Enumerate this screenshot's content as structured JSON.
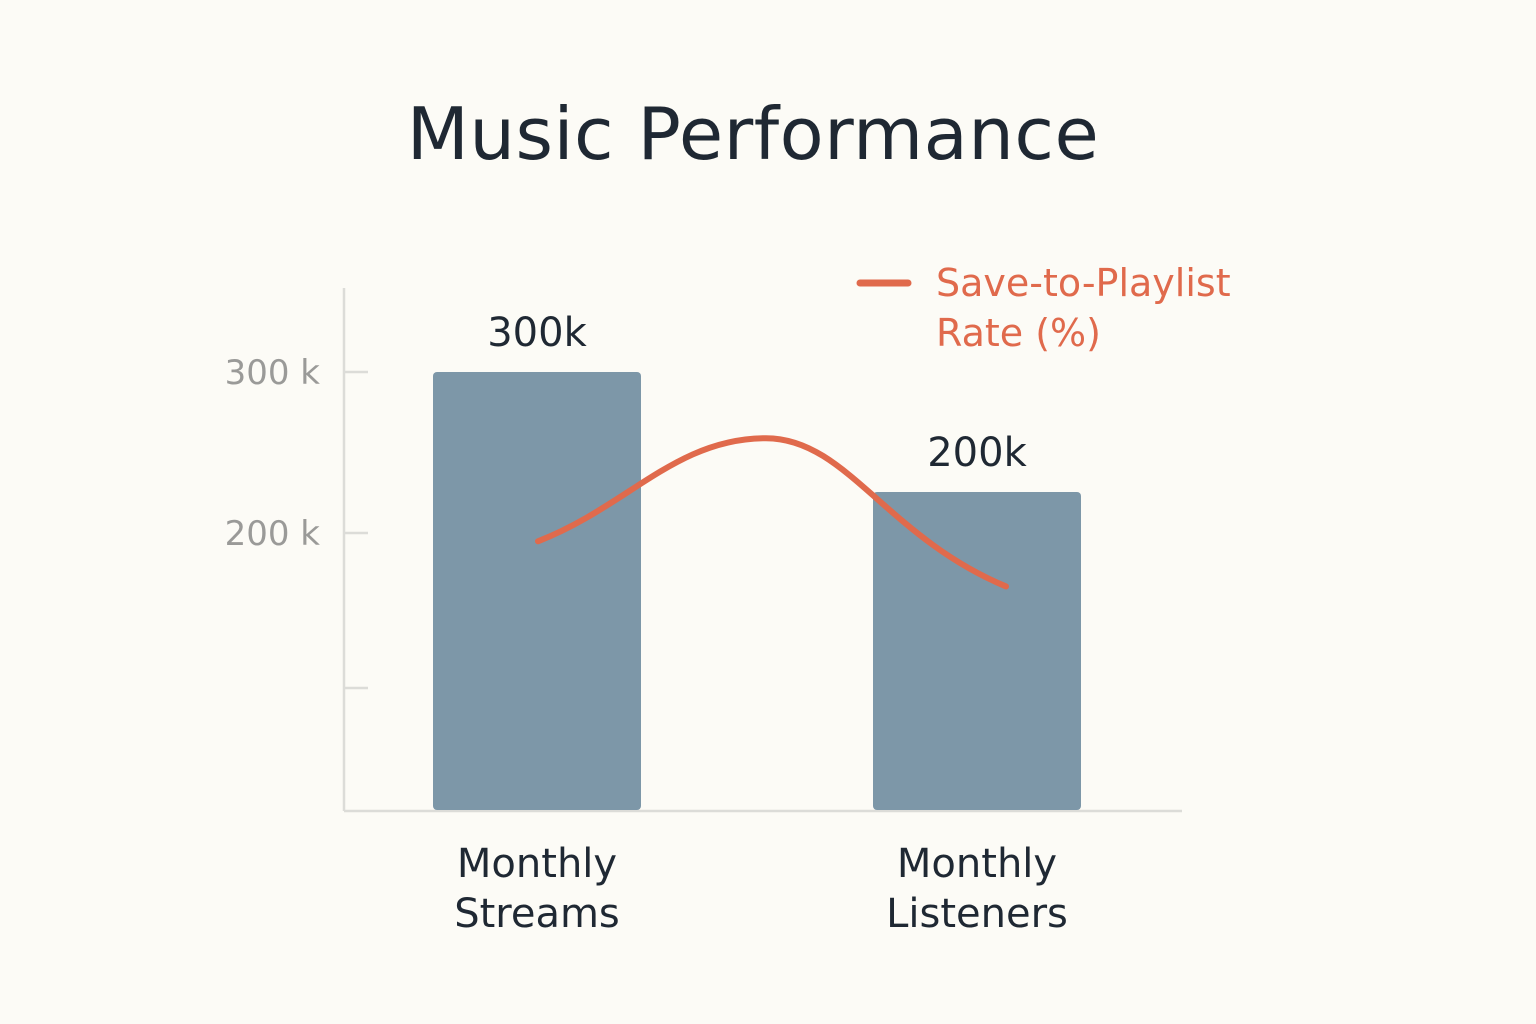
{
  "chart_data": {
    "type": "bar",
    "title": "Music Performance",
    "categories": [
      [
        "Monthly",
        "Streams"
      ],
      [
        "Monthly",
        "Listeners"
      ]
    ],
    "values": [
      300000,
      200000
    ],
    "data_labels": [
      "300k",
      "200k"
    ],
    "y_ticks": [
      {
        "value": 300000,
        "label": "300 k"
      },
      {
        "value": 200000,
        "label": "200 k"
      },
      {
        "value": 100000,
        "label": ""
      }
    ],
    "ylim": [
      0,
      350000
    ],
    "grid": false,
    "bar_color": "#7d97a8",
    "line_series": {
      "name": [
        "Save-to-Playlist",
        "Rate (%)"
      ],
      "color": "#e06a4c",
      "points": [
        {
          "x": "Monthly Streams",
          "y": 193000
        },
        {
          "x": "between",
          "y": 280000
        },
        {
          "x": "Monthly Listeners",
          "y": 178000
        }
      ]
    },
    "legend_position": "top-right"
  }
}
